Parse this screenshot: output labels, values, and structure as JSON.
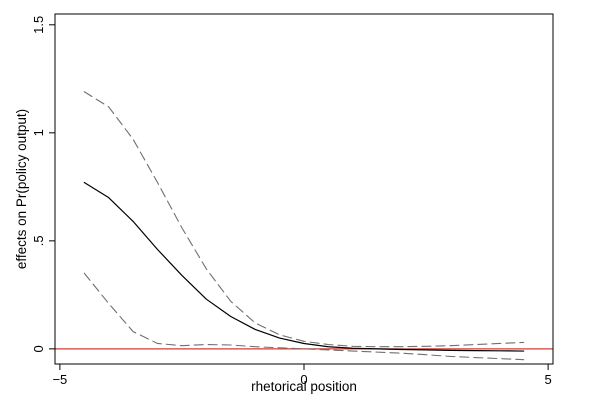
{
  "chart_data": {
    "type": "line",
    "xlabel": "rhetorical position",
    "ylabel": "effects on Pr(policy output)",
    "xlim": [
      -5.1,
      5.1
    ],
    "ylim": [
      -0.07,
      1.55
    ],
    "x_ticks": [
      -5,
      0,
      5
    ],
    "x_tick_labels": [
      "−5",
      "0",
      "5"
    ],
    "y_ticks": [
      0,
      0.5,
      1,
      1.5
    ],
    "y_tick_labels": [
      "0",
      ".5",
      "1",
      "1.5"
    ],
    "grid": false,
    "legend": "none",
    "reference_line": {
      "y": 0,
      "color": "#e8342c"
    },
    "series": [
      {
        "role": "estimate",
        "style": "solid",
        "color": "#000000",
        "x": [
          -4.5,
          -4.0,
          -3.5,
          -3.0,
          -2.5,
          -2.0,
          -1.5,
          -1.0,
          -0.5,
          0.0,
          0.5,
          1.0,
          1.5,
          2.0,
          2.5,
          3.0,
          3.5,
          4.0,
          4.5
        ],
        "y": [
          0.77,
          0.7,
          0.59,
          0.46,
          0.34,
          0.23,
          0.15,
          0.09,
          0.05,
          0.025,
          0.01,
          0.003,
          0.0,
          -0.003,
          -0.005,
          -0.007,
          -0.008,
          -0.009,
          -0.01
        ]
      },
      {
        "role": "upper-bound",
        "style": "dashed",
        "color": "#707070",
        "x": [
          -4.5,
          -4.0,
          -3.5,
          -3.0,
          -2.5,
          -2.0,
          -1.5,
          -1.0,
          -0.5,
          0.0,
          0.5,
          1.0,
          1.5,
          2.0,
          2.5,
          3.0,
          3.5,
          4.0,
          4.5
        ],
        "y": [
          1.19,
          1.12,
          0.97,
          0.77,
          0.56,
          0.37,
          0.22,
          0.12,
          0.065,
          0.035,
          0.02,
          0.012,
          0.01,
          0.01,
          0.012,
          0.015,
          0.02,
          0.025,
          0.03
        ]
      },
      {
        "role": "lower-bound",
        "style": "dashed",
        "color": "#707070",
        "x": [
          -4.5,
          -4.0,
          -3.5,
          -3.0,
          -2.5,
          -2.0,
          -1.5,
          -1.0,
          -0.5,
          0.0,
          0.5,
          1.0,
          1.5,
          2.0,
          2.5,
          3.0,
          3.5,
          4.0,
          4.5
        ],
        "y": [
          0.35,
          0.21,
          0.08,
          0.025,
          0.015,
          0.02,
          0.018,
          0.01,
          0.005,
          0.0,
          -0.005,
          -0.01,
          -0.015,
          -0.02,
          -0.027,
          -0.035,
          -0.04,
          -0.045,
          -0.05
        ]
      }
    ]
  }
}
